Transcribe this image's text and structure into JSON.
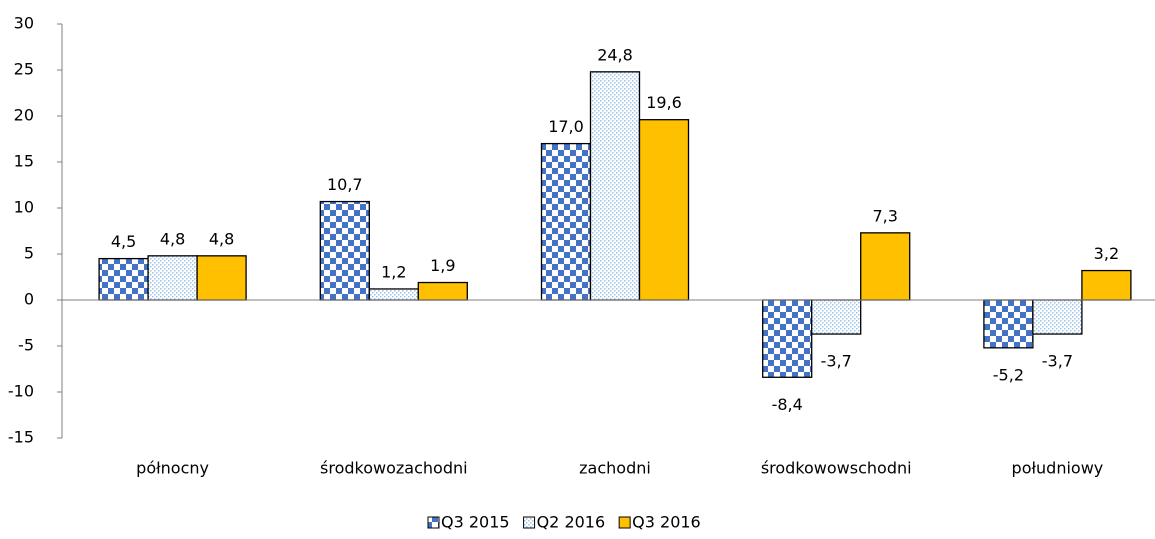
{
  "chart_data": {
    "type": "bar",
    "categories": [
      "północny",
      "środkowozachodni",
      "zachodni",
      "środkowowschodni",
      "południowy"
    ],
    "series": [
      {
        "name": "Q3 2015",
        "color": "#4472c4",
        "pattern": "checker",
        "values": [
          4.5,
          10.7,
          17.0,
          -8.4,
          -5.2
        ],
        "value_labels": [
          "4,5",
          "10,7",
          "17,0",
          "-8,4",
          "-5,2"
        ]
      },
      {
        "name": "Q2 2016",
        "color": "#9dc3e6",
        "pattern": "dots",
        "values": [
          4.8,
          1.2,
          24.8,
          -3.7,
          -3.7
        ],
        "value_labels": [
          "4,8",
          "1,2",
          "24,8",
          "-3,7",
          "-3,7"
        ]
      },
      {
        "name": "Q3 2016",
        "color": "#ffc000",
        "pattern": "solid",
        "values": [
          4.8,
          1.9,
          19.6,
          7.3,
          3.2
        ],
        "value_labels": [
          "4,8",
          "1,9",
          "19,6",
          "7,3",
          "3,2"
        ]
      }
    ],
    "ylim": [
      -15,
      30
    ],
    "yticks": [
      -15,
      -10,
      -5,
      0,
      5,
      10,
      15,
      20,
      25,
      30
    ],
    "grid": false,
    "legend": "bottom"
  }
}
